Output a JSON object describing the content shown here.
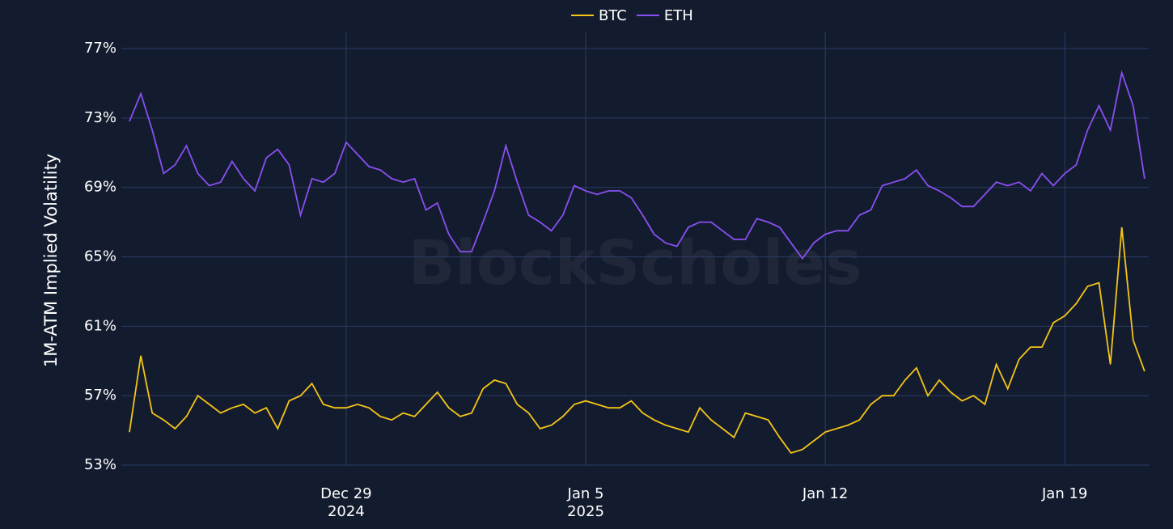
{
  "chart_data": {
    "type": "line",
    "y_axis_label": "1M-ATM Implied Volatility",
    "watermark": "BlockScholes",
    "legend": "top",
    "grid": true,
    "categories": [
      null,
      null,
      null,
      null,
      null,
      null,
      null,
      null,
      null,
      null,
      null,
      null,
      null,
      null,
      null,
      null,
      null,
      null,
      null,
      "Dec 29\n2024",
      null,
      null,
      null,
      null,
      null,
      null,
      null,
      null,
      null,
      null,
      null,
      null,
      null,
      null,
      null,
      null,
      null,
      null,
      null,
      null,
      "Jan 5\n2025",
      null,
      null,
      null,
      null,
      null,
      null,
      null,
      null,
      null,
      null,
      null,
      null,
      null,
      null,
      null,
      null,
      null,
      null,
      null,
      null,
      "Jan 12",
      null,
      null,
      null,
      null,
      null,
      null,
      null,
      null,
      null,
      null,
      null,
      null,
      null,
      null,
      null,
      null,
      null,
      null,
      null,
      null,
      "Jan 19",
      null,
      null,
      null,
      null,
      null,
      null,
      null
    ],
    "ylim": [
      53,
      77
    ],
    "yticks": [
      {
        "value": 53,
        "label": "53%"
      },
      {
        "value": 57,
        "label": "57%"
      },
      {
        "value": 61,
        "label": "61%"
      },
      {
        "value": 65,
        "label": "65%"
      },
      {
        "value": 69,
        "label": "69%"
      },
      {
        "value": 73,
        "label": "73%"
      },
      {
        "value": 77,
        "label": "77%"
      }
    ],
    "series": [
      {
        "name": "BTC",
        "color": "#f5c518",
        "values": [
          54.9,
          59.3,
          56.0,
          55.6,
          55.1,
          55.8,
          57.0,
          56.5,
          56.0,
          56.3,
          56.5,
          56.0,
          56.3,
          55.1,
          56.7,
          57.0,
          57.7,
          56.5,
          56.3,
          56.3,
          56.5,
          56.3,
          55.8,
          55.6,
          56.0,
          55.8,
          56.5,
          57.2,
          56.3,
          55.8,
          56.0,
          57.4,
          57.9,
          57.7,
          56.5,
          56.0,
          55.1,
          55.3,
          55.8,
          56.5,
          56.7,
          56.5,
          56.3,
          56.3,
          56.7,
          56.0,
          55.6,
          55.3,
          55.1,
          54.9,
          56.3,
          55.6,
          55.1,
          54.6,
          56.0,
          55.8,
          55.6,
          54.6,
          53.7,
          53.9,
          54.4,
          54.9,
          55.1,
          55.3,
          55.6,
          56.5,
          57.0,
          57.0,
          57.9,
          58.6,
          57.0,
          57.9,
          57.2,
          56.7,
          57.0,
          56.5,
          58.8,
          57.4,
          59.1,
          59.8,
          59.8,
          61.2,
          61.6,
          62.3,
          63.3,
          63.5,
          58.8,
          66.7,
          60.2,
          58.4
        ]
      },
      {
        "name": "ETH",
        "color": "#8a4ff2",
        "values": [
          72.8,
          74.4,
          72.3,
          69.8,
          70.3,
          71.4,
          69.8,
          69.1,
          69.3,
          70.5,
          69.5,
          68.8,
          70.7,
          71.2,
          70.3,
          67.4,
          69.5,
          69.3,
          69.8,
          71.6,
          70.9,
          70.2,
          70.0,
          69.5,
          69.3,
          69.5,
          67.7,
          68.1,
          66.3,
          65.3,
          65.3,
          67.0,
          68.8,
          71.4,
          69.3,
          67.4,
          67.0,
          66.5,
          67.4,
          69.1,
          68.8,
          68.6,
          68.8,
          68.8,
          68.4,
          67.4,
          66.3,
          65.8,
          65.6,
          66.7,
          67.0,
          67.0,
          66.5,
          66.0,
          66.0,
          67.2,
          67.0,
          66.7,
          65.8,
          64.9,
          65.8,
          66.3,
          66.5,
          66.5,
          67.4,
          67.7,
          69.1,
          69.3,
          69.5,
          70.0,
          69.1,
          68.8,
          68.4,
          67.9,
          67.9,
          68.6,
          69.3,
          69.1,
          69.3,
          68.8,
          69.8,
          69.1,
          69.8,
          70.3,
          72.3,
          73.7,
          72.3,
          75.6,
          73.7,
          69.5
        ]
      }
    ]
  }
}
